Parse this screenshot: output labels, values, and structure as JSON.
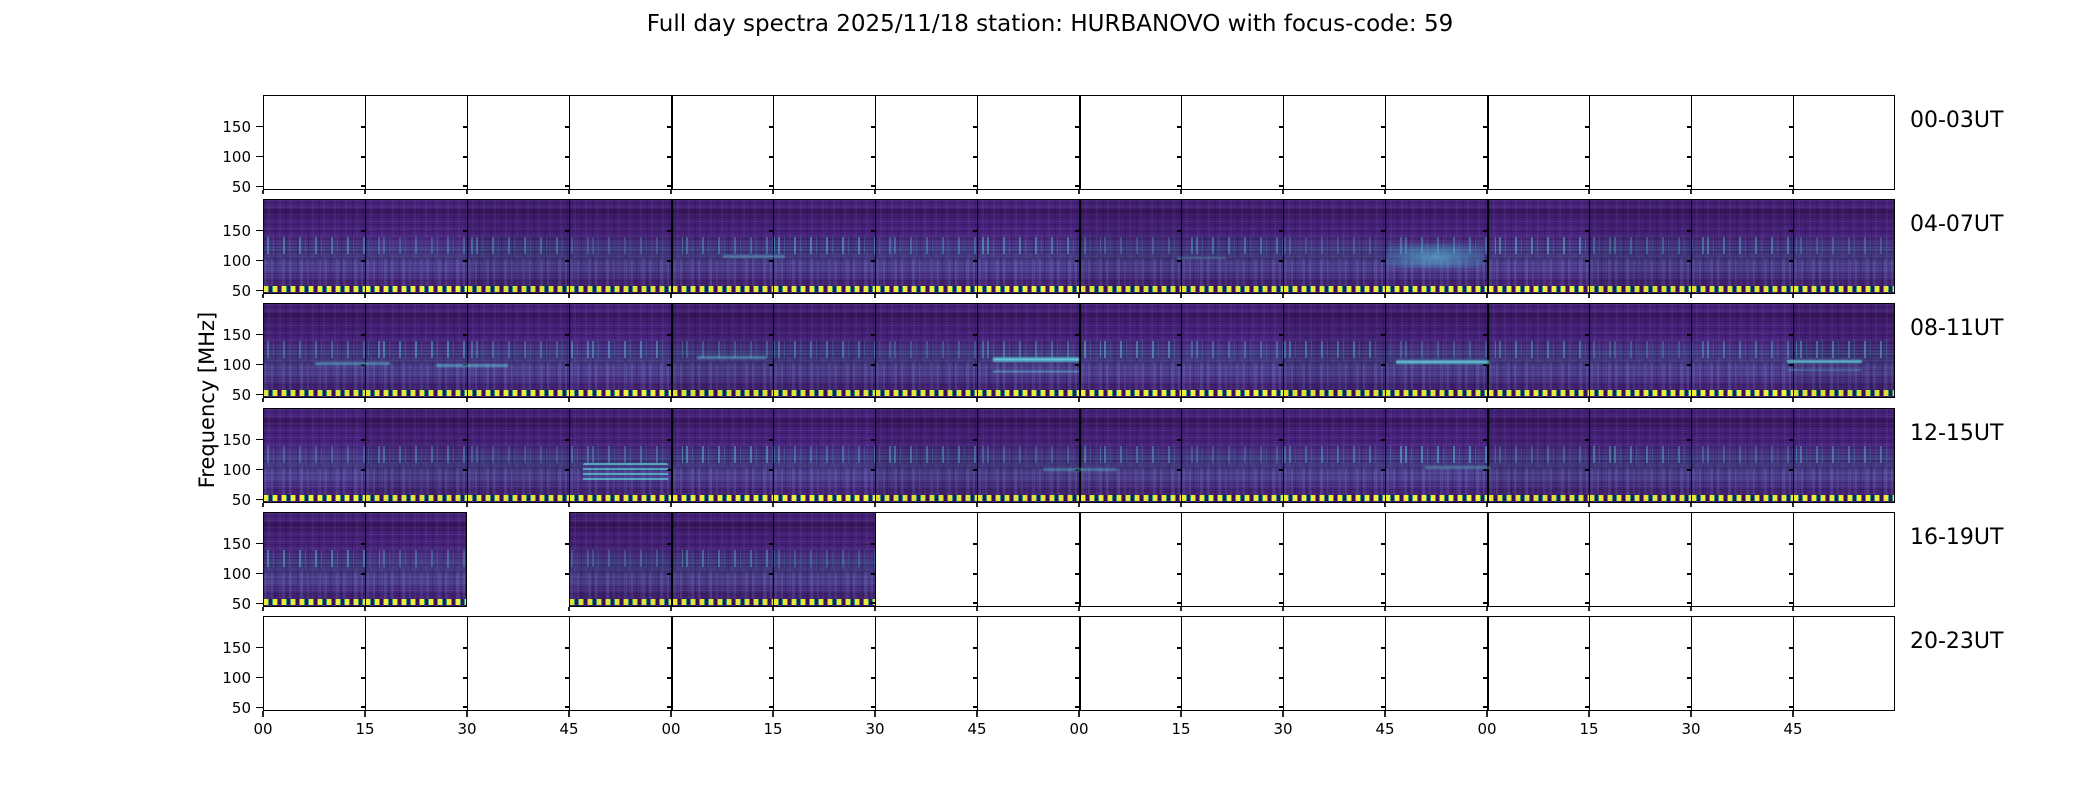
{
  "title": "Full day spectra 2025/11/18 station: HURBANOVO with focus-code: 59",
  "station": "HURBANOVO",
  "date": "2025/11/18",
  "focus_code": "59",
  "colors": {
    "background": "#ffffff",
    "axis": "#000000",
    "spectrogram_base": "#452179",
    "spectrogram_bright": "#58ced8",
    "marker_yellow": "#f0e83a",
    "marker_green": "#36996b",
    "colormap": "viridis"
  },
  "chart_data": {
    "type": "heatmap",
    "title": "Full day spectra 2025/11/18 station: HURBANOVO with focus-code: 59",
    "ylabel": "Frequency [MHz]",
    "y_tick_labels": [
      "150",
      "100",
      "50"
    ],
    "freq_range_mhz": [
      45,
      200
    ],
    "x_cell_minutes": 15,
    "xtick_labels": [
      "00",
      "15",
      "30",
      "45",
      "00",
      "15",
      "30",
      "45",
      "00",
      "15",
      "30",
      "45",
      "00",
      "15",
      "30",
      "45"
    ],
    "grid": "16 quarter-hour panels per row, 6 rows of 4 hours each",
    "legend_position": "none",
    "cell_states_legend": {
      "0": "panel missing (blank)",
      "1": "empty axes, no data",
      "2": "spectrogram data"
    },
    "rows": [
      {
        "label": "00-03UT",
        "cells": [
          1,
          1,
          1,
          1,
          1,
          1,
          1,
          1,
          1,
          1,
          1,
          1,
          1,
          1,
          1,
          1
        ]
      },
      {
        "label": "04-07UT",
        "cells": [
          2,
          2,
          2,
          2,
          2,
          2,
          2,
          2,
          2,
          2,
          2,
          2,
          2,
          2,
          2,
          2
        ]
      },
      {
        "label": "08-11UT",
        "cells": [
          2,
          2,
          2,
          2,
          2,
          2,
          2,
          2,
          2,
          2,
          2,
          2,
          2,
          2,
          2,
          2
        ]
      },
      {
        "label": "12-15UT",
        "cells": [
          2,
          2,
          2,
          2,
          2,
          2,
          2,
          2,
          2,
          2,
          2,
          2,
          2,
          2,
          2,
          2
        ]
      },
      {
        "label": "16-19UT",
        "cells": [
          2,
          2,
          0,
          2,
          2,
          2,
          1,
          1,
          1,
          1,
          1,
          1,
          1,
          1,
          1,
          1
        ]
      },
      {
        "label": "20-23UT",
        "cells": [
          1,
          1,
          1,
          1,
          1,
          1,
          1,
          1,
          1,
          1,
          1,
          1,
          1,
          1,
          1,
          1
        ]
      }
    ],
    "features": [
      {
        "row": 1,
        "x": 0.282,
        "w": 0.038,
        "y": 0.58,
        "h": 0.05,
        "intensity": 0.45,
        "kind": "line"
      },
      {
        "row": 1,
        "x": 0.56,
        "w": 0.03,
        "y": 0.6,
        "h": 0.04,
        "intensity": 0.3,
        "kind": "line"
      },
      {
        "row": 1,
        "x": 0.688,
        "w": 0.06,
        "y": 0.47,
        "h": 0.26,
        "intensity": 0.8,
        "kind": "patch"
      },
      {
        "row": 2,
        "x": 0.032,
        "w": 0.046,
        "y": 0.615,
        "h": 0.05,
        "intensity": 0.5,
        "kind": "line"
      },
      {
        "row": 2,
        "x": 0.106,
        "w": 0.044,
        "y": 0.63,
        "h": 0.055,
        "intensity": 0.55,
        "kind": "line"
      },
      {
        "row": 2,
        "x": 0.266,
        "w": 0.042,
        "y": 0.55,
        "h": 0.05,
        "intensity": 0.5,
        "kind": "line"
      },
      {
        "row": 2,
        "x": 0.447,
        "w": 0.053,
        "y": 0.555,
        "h": 0.075,
        "intensity": 0.95,
        "kind": "line"
      },
      {
        "row": 2,
        "x": 0.447,
        "w": 0.053,
        "y": 0.705,
        "h": 0.03,
        "intensity": 0.55,
        "kind": "line"
      },
      {
        "row": 2,
        "x": 0.694,
        "w": 0.057,
        "y": 0.585,
        "h": 0.065,
        "intensity": 0.9,
        "kind": "line"
      },
      {
        "row": 2,
        "x": 0.934,
        "w": 0.046,
        "y": 0.585,
        "h": 0.06,
        "intensity": 0.85,
        "kind": "line"
      },
      {
        "row": 2,
        "x": 0.934,
        "w": 0.046,
        "y": 0.69,
        "h": 0.03,
        "intensity": 0.5,
        "kind": "line"
      },
      {
        "row": 3,
        "x": 0.196,
        "w": 0.052,
        "y": 0.58,
        "h": 0.2,
        "intensity": 0.8,
        "kind": "lines"
      },
      {
        "row": 3,
        "x": 0.478,
        "w": 0.045,
        "y": 0.62,
        "h": 0.05,
        "intensity": 0.4,
        "kind": "line"
      },
      {
        "row": 3,
        "x": 0.712,
        "w": 0.04,
        "y": 0.6,
        "h": 0.05,
        "intensity": 0.4,
        "kind": "line"
      }
    ]
  }
}
